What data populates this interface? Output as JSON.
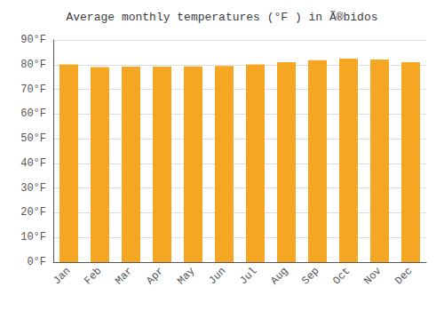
{
  "chart_data": {
    "type": "bar",
    "title": "Average monthly temperatures (°F ) in Ã®bidos",
    "categories": [
      "Jan",
      "Feb",
      "Mar",
      "Apr",
      "May",
      "Jun",
      "Jul",
      "Aug",
      "Sep",
      "Oct",
      "Nov",
      "Dec"
    ],
    "values": [
      80.1,
      79.0,
      79.2,
      79.2,
      79.3,
      79.5,
      80.1,
      81.0,
      81.8,
      82.4,
      82.1,
      81.0
    ],
    "color": "#F5A623",
    "ylim": [
      0,
      90
    ],
    "yticks": [
      {
        "value": 0,
        "label": "0°F"
      },
      {
        "value": 10,
        "label": "10°F"
      },
      {
        "value": 20,
        "label": "20°F"
      },
      {
        "value": 30,
        "label": "30°F"
      },
      {
        "value": 40,
        "label": "40°F"
      },
      {
        "value": 50,
        "label": "50°F"
      },
      {
        "value": 60,
        "label": "60°F"
      },
      {
        "value": 70,
        "label": "70°F"
      },
      {
        "value": 80,
        "label": "80°F"
      },
      {
        "value": 90,
        "label": "90°F"
      }
    ],
    "grid": true
  }
}
